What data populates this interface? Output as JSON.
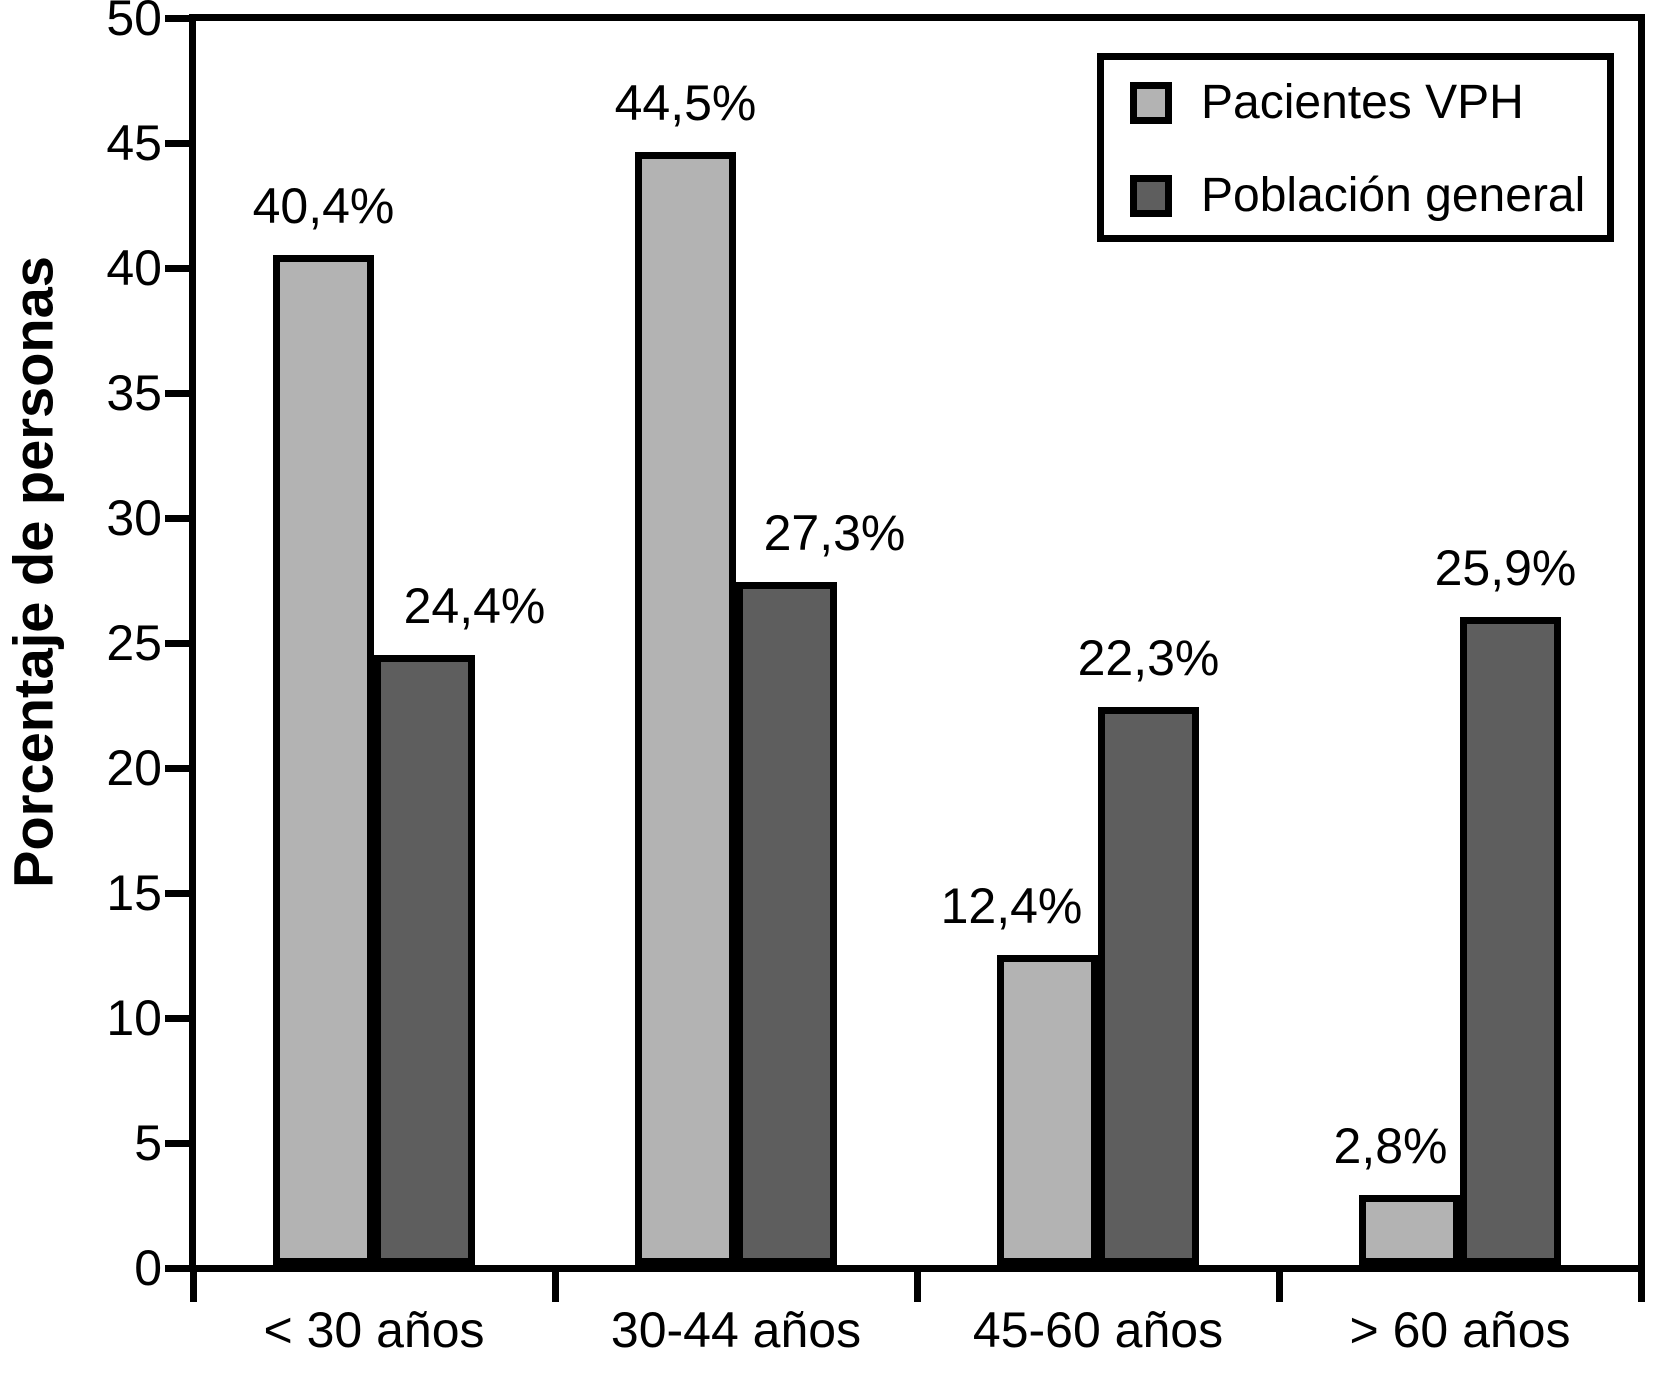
{
  "chart_data": {
    "type": "bar",
    "ylabel": "Porcentaje de personas",
    "ylim": [
      0,
      50
    ],
    "yticks": [
      0,
      5,
      10,
      15,
      20,
      25,
      30,
      35,
      40,
      45,
      50
    ],
    "categories": [
      "< 30 años",
      "30-44 años",
      "45-60 años",
      "> 60 años"
    ],
    "series": [
      {
        "name": "Pacientes VPH",
        "color": "#b3b3b3",
        "values": [
          40.4,
          44.5,
          12.4,
          2.8
        ],
        "value_labels": [
          "40,4%",
          "44,5%",
          "12,4%",
          "2,8%"
        ]
      },
      {
        "name": "Población general",
        "color": "#5e5e5e",
        "values": [
          24.4,
          27.3,
          22.3,
          25.9
        ],
        "value_labels": [
          "24,4%",
          "27,3%",
          "22,3%",
          "25,9%"
        ]
      }
    ],
    "legend_position": "top-right",
    "grid": false,
    "axis_color": "#000000",
    "text_color": "#000000"
  }
}
